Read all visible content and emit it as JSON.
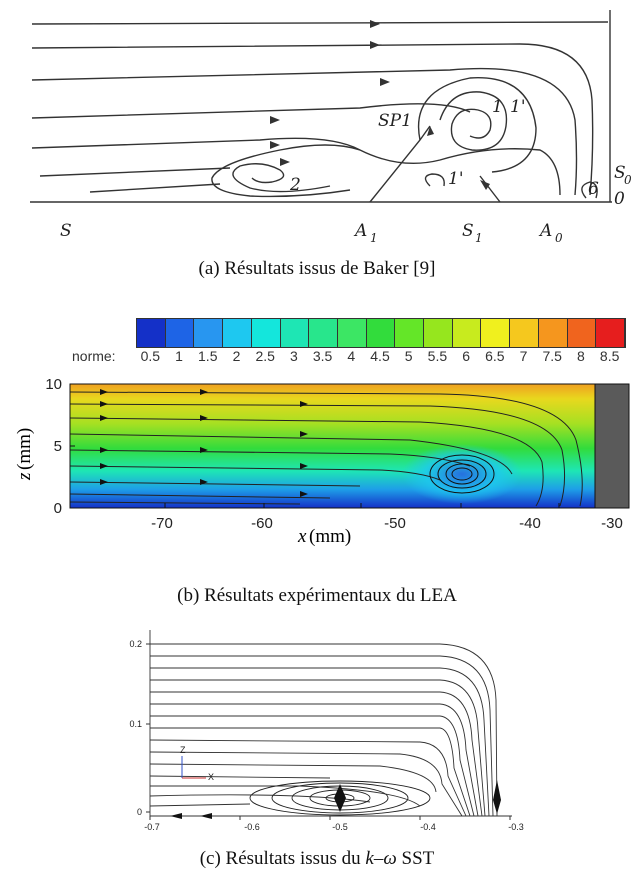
{
  "figure": {
    "panel_a": {
      "caption": "(a) Résultats issus de Baker [9]",
      "labels": {
        "S": "S",
        "A1": "A",
        "A1_sub": "1",
        "S1": "S",
        "S1_sub": "1",
        "A0": "A",
        "A0_sub": "0",
        "S0": "S",
        "S0_sub": "0",
        "zero": "0",
        "SP1": "SP1",
        "v1": "1",
        "v1p": "1'",
        "v1pp": "1'",
        "v2": "2",
        "v6": "6"
      }
    },
    "panel_b": {
      "caption": "(b) Résultats expérimentaux du LEA",
      "colorbar": {
        "label": "norme:",
        "ticks": [
          "0.5",
          "1",
          "1.5",
          "2",
          "2.5",
          "3",
          "3.5",
          "4",
          "4.5",
          "5",
          "5.5",
          "6",
          "6.5",
          "7",
          "7.5",
          "8",
          "8.5"
        ],
        "colors": [
          "#1430c8",
          "#1e64e6",
          "#2896f0",
          "#1ec8f0",
          "#14e6dc",
          "#1ee6b4",
          "#28e68c",
          "#3ce664",
          "#32dc3c",
          "#64e628",
          "#96e61e",
          "#c8eb1e",
          "#f0f01e",
          "#f5c81e",
          "#f5961e",
          "#f0641e",
          "#e61e1e"
        ]
      },
      "axes": {
        "xlabel": "x",
        "xunit": "(mm)",
        "ylabel": "z",
        "yunit": "(mm)",
        "xticks": [
          "-70",
          "-60",
          "-50",
          "-40",
          "-30"
        ],
        "yticks": [
          "10",
          "5",
          "0"
        ]
      }
    },
    "panel_c": {
      "caption_prefix": "(c) Résultats issus du ",
      "caption_math": "k",
      "caption_dash": "–",
      "caption_omega": "ω",
      "caption_suffix": " SST",
      "axes": {
        "xticks": [
          "-0.7",
          "-0.6",
          "-0.5",
          "-0.4",
          "-0.3"
        ],
        "yticks": [
          "0.2",
          "0.1",
          "0"
        ],
        "triad_z": "Z",
        "triad_x": "X"
      }
    }
  },
  "colors": {
    "ink": "#222222",
    "wall": "#5a5a5a"
  }
}
